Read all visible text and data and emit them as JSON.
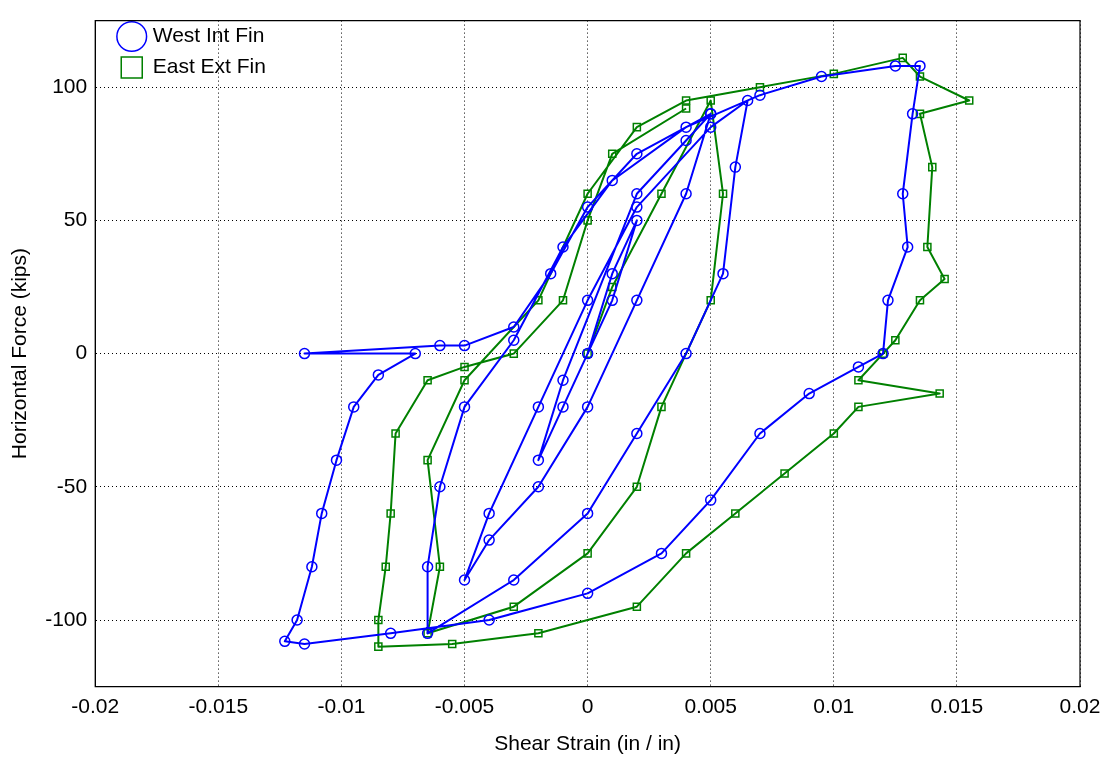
{
  "chart_data": {
    "type": "line",
    "xlabel": "Shear Strain (in / in)",
    "ylabel": "Horizontal Force (kips)",
    "xlim": [
      -0.02,
      0.02
    ],
    "xticks": [
      -0.02,
      -0.015,
      -0.01,
      -0.005,
      0,
      0.005,
      0.01,
      0.015,
      0.02
    ],
    "ylim": [
      -125,
      125
    ],
    "yticks": [
      -100,
      -50,
      0,
      50,
      100
    ],
    "grid": true,
    "legend": "top left",
    "line_style": "solid",
    "series": [
      {
        "name": "West Int Fin",
        "color": "#0000ff",
        "marker": "circle",
        "x": [
          0,
          0.001,
          0.002,
          0.001,
          -0.001,
          -0.002,
          -0.001,
          0.002,
          0.004,
          0.005,
          0.004,
          0.002,
          0,
          -0.002,
          -0.004,
          -0.005,
          -0.004,
          -0.002,
          0,
          0.002,
          0.005,
          0.0065,
          0.006,
          0.0055,
          0.004,
          0.002,
          0,
          -0.003,
          -0.0065,
          -0.0065,
          -0.006,
          -0.005,
          -0.003,
          -0.001,
          0.001,
          0.004,
          0.007,
          0.0095,
          0.0125,
          0.0135,
          0.0132,
          0.0128,
          0.013,
          0.0122,
          0.012,
          0.011,
          0.009,
          0.007,
          0.005,
          0.003,
          0,
          -0.004,
          -0.008,
          -0.0115,
          -0.0123,
          -0.0118,
          -0.0112,
          -0.0108,
          -0.0102,
          -0.0095,
          -0.0085,
          -0.007,
          -0.0115,
          -0.006,
          -0.005,
          -0.003,
          -0.0015,
          0,
          0.002,
          0.005
        ],
        "values": [
          0,
          30,
          50,
          20,
          -20,
          -40,
          -10,
          60,
          80,
          90,
          60,
          20,
          -20,
          -50,
          -70,
          -85,
          -60,
          -20,
          20,
          55,
          85,
          95,
          70,
          30,
          0,
          -30,
          -60,
          -85,
          -105,
          -80,
          -50,
          -20,
          5,
          40,
          65,
          85,
          97,
          104,
          108,
          108,
          90,
          60,
          40,
          20,
          0,
          -5,
          -15,
          -30,
          -55,
          -75,
          -90,
          -100,
          -105,
          -109,
          -108,
          -100,
          -80,
          -60,
          -40,
          -20,
          -8,
          0,
          0,
          3,
          3,
          10,
          30,
          55,
          75,
          90
        ]
      },
      {
        "name": "East Ext Fin",
        "color": "#008000",
        "marker": "square",
        "x": [
          0,
          0.001,
          0.003,
          0.005,
          0.0055,
          0.005,
          0.003,
          0.002,
          0,
          -0.003,
          -0.0065,
          -0.006,
          -0.0065,
          -0.005,
          -0.002,
          0,
          0.002,
          0.004,
          0.007,
          0.01,
          0.0128,
          0.0135,
          0.0155,
          0.0135,
          0.014,
          0.0138,
          0.0145,
          0.0135,
          0.0125,
          0.012,
          0.011,
          0.0143,
          0.011,
          0.01,
          0.008,
          0.006,
          0.004,
          0.002,
          -0.002,
          -0.0055,
          -0.0085,
          -0.0085,
          -0.0082,
          -0.008,
          -0.0078,
          -0.0065,
          -0.005,
          -0.003,
          -0.001,
          0,
          0.001,
          0.004
        ],
        "values": [
          0,
          25,
          60,
          95,
          60,
          20,
          -20,
          -50,
          -75,
          -95,
          -105,
          -80,
          -40,
          -10,
          20,
          60,
          85,
          95,
          100,
          105,
          111,
          104,
          95,
          90,
          70,
          40,
          28,
          20,
          5,
          0,
          -10,
          -15,
          -20,
          -30,
          -45,
          -60,
          -75,
          -95,
          -105,
          -109,
          -110,
          -100,
          -80,
          -60,
          -30,
          -10,
          -5,
          0,
          20,
          50,
          75,
          92
        ]
      }
    ]
  }
}
